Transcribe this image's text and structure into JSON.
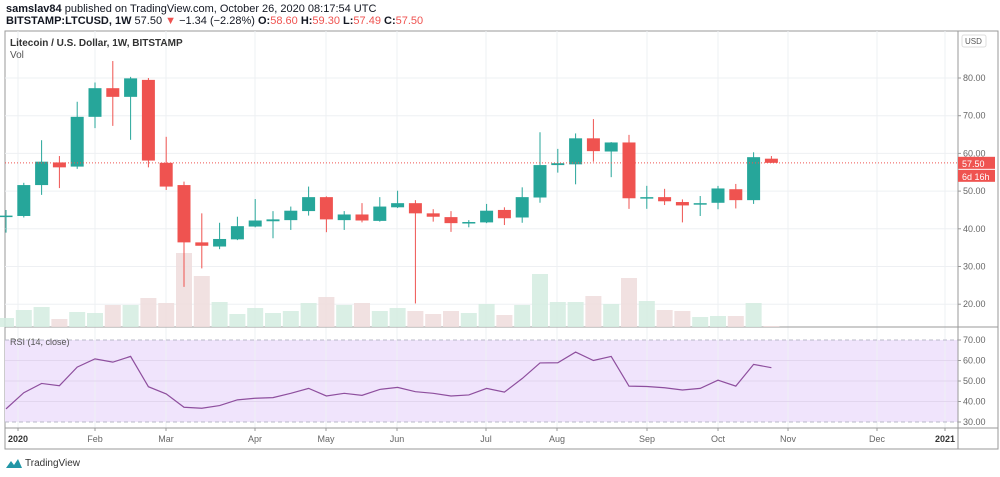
{
  "header": {
    "author": "samslav84",
    "published_text": "published on TradingView.com, October 26, 2020 08:17:54 UTC",
    "symbol": "BITSTAMP:LTCUSD, 1W",
    "last": "57.50",
    "change_arrow": "▼",
    "change": "−1.34 (−2.28%)",
    "o_label": "O:",
    "o": "58.60",
    "h_label": "H:",
    "h": "59.30",
    "l_label": "L:",
    "l": "57.49",
    "c_label": "C:",
    "c": "57.50"
  },
  "footer": {
    "brand": "TradingView",
    "logo_icon": "tradingview-logo-icon"
  },
  "colors": {
    "up": "#26a69a",
    "down": "#ef5350",
    "vol_up": "#d4ece0",
    "vol_down": "#eedcdc",
    "rsi_line": "#8e4f9e",
    "rsi_band": "#f0e4fc"
  },
  "chart_data": [
    {
      "type": "candlestick",
      "title": "Litecoin / U.S. Dollar, 1W, BITSTAMP",
      "volume_label": "Vol",
      "currency_label": "USD",
      "y_ticks": [
        "80.00",
        "70.00",
        "60.00",
        "50.00",
        "40.00",
        "30.00",
        "20.00"
      ],
      "y_tick_values": [
        80,
        70,
        60,
        50,
        40,
        30,
        20
      ],
      "ylim": [
        14.5,
        92
      ],
      "last_price_label": "57.50",
      "countdown_label": "6d 16h",
      "x_ticks": [
        "2020",
        "Feb",
        "Mar",
        "Apr",
        "May",
        "Jun",
        "Jul",
        "Aug",
        "Sep",
        "Oct",
        "Nov",
        "Dec",
        "2021"
      ],
      "grid": true,
      "candles": [
        [
          43.2,
          45.0,
          39.0,
          43.5
        ],
        [
          43.4,
          52.2,
          43.0,
          51.6
        ],
        [
          51.6,
          63.5,
          49.0,
          57.8
        ],
        [
          57.6,
          59.3,
          50.8,
          56.3
        ],
        [
          56.5,
          73.7,
          55.9,
          69.7
        ],
        [
          69.7,
          78.8,
          66.7,
          77.3
        ],
        [
          77.3,
          84.5,
          67.3,
          75.0
        ],
        [
          75.0,
          80.3,
          63.6,
          79.9
        ],
        [
          79.5,
          80.0,
          56.3,
          58.1
        ],
        [
          57.5,
          64.4,
          50.3,
          51.2
        ],
        [
          51.6,
          52.5,
          24.6,
          36.4
        ],
        [
          36.4,
          44.1,
          29.5,
          35.5
        ],
        [
          35.3,
          41.6,
          34.6,
          37.3
        ],
        [
          37.2,
          43.2,
          37.0,
          40.7
        ],
        [
          40.6,
          47.9,
          40.4,
          42.2
        ],
        [
          42.0,
          44.7,
          37.5,
          42.5
        ],
        [
          42.3,
          45.9,
          39.7,
          44.8
        ],
        [
          44.7,
          51.2,
          43.5,
          48.4
        ],
        [
          48.4,
          48.6,
          39.1,
          42.5
        ],
        [
          42.3,
          44.7,
          39.7,
          43.8
        ],
        [
          43.8,
          46.8,
          41.7,
          42.2
        ],
        [
          42.1,
          48.4,
          41.9,
          45.9
        ],
        [
          45.7,
          50.1,
          45.5,
          46.8
        ],
        [
          46.8,
          47.6,
          20.2,
          44.1
        ],
        [
          44.1,
          45.2,
          41.9,
          43.2
        ],
        [
          43.1,
          44.7,
          39.2,
          41.5
        ],
        [
          41.4,
          42.3,
          40.4,
          41.8
        ],
        [
          41.7,
          46.6,
          41.5,
          44.8
        ],
        [
          45.0,
          45.7,
          41.0,
          42.8
        ],
        [
          43.0,
          51.0,
          41.6,
          48.4
        ],
        [
          48.3,
          65.6,
          46.9,
          56.9
        ],
        [
          56.9,
          61.2,
          54.9,
          57.4
        ],
        [
          57.1,
          65.3,
          51.8,
          64.0
        ],
        [
          64.0,
          69.1,
          57.8,
          60.6
        ],
        [
          60.5,
          63.0,
          53.7,
          62.9
        ],
        [
          62.9,
          64.9,
          45.3,
          48.1
        ],
        [
          48.0,
          51.4,
          45.3,
          48.4
        ],
        [
          48.4,
          50.6,
          46.3,
          47.3
        ],
        [
          47.1,
          47.8,
          41.7,
          46.2
        ],
        [
          46.4,
          48.7,
          43.4,
          46.8
        ],
        [
          46.9,
          51.4,
          45.2,
          50.7
        ],
        [
          50.5,
          51.9,
          45.4,
          47.6
        ],
        [
          47.6,
          60.3,
          46.6,
          59.0
        ],
        [
          58.6,
          59.3,
          57.49,
          57.5
        ]
      ],
      "volume_relative": [
        9,
        17,
        20,
        8,
        15,
        14,
        22,
        22,
        29,
        24,
        74,
        51,
        25,
        13,
        19,
        14,
        16,
        24,
        30,
        22,
        24,
        16,
        19,
        16,
        13,
        16,
        14,
        23,
        12,
        22,
        53,
        25,
        25,
        31,
        23,
        49,
        26,
        17,
        16,
        10,
        11,
        11,
        24,
        1
      ]
    },
    {
      "type": "line",
      "title": "RSI (14, close)",
      "y_ticks": [
        "70.00",
        "60.00",
        "50.00",
        "40.00",
        "30.00"
      ],
      "y_tick_values": [
        70,
        60,
        50,
        40,
        30
      ],
      "band": [
        30,
        70
      ],
      "values": [
        36.4,
        44.3,
        48.8,
        47.7,
        56.8,
        60.8,
        59.2,
        62.0,
        47.2,
        43.7,
        37.2,
        36.7,
        38.0,
        40.8,
        41.6,
        41.9,
        44.0,
        46.4,
        42.7,
        44.0,
        43.0,
        45.9,
        46.9,
        44.8,
        44.0,
        42.7,
        43.2,
        46.4,
        44.6,
        51.2,
        58.8,
        58.9,
        64.1,
        60.0,
        62.0,
        47.5,
        47.3,
        46.7,
        45.6,
        46.4,
        50.4,
        47.5,
        58.1,
        56.5
      ]
    }
  ]
}
